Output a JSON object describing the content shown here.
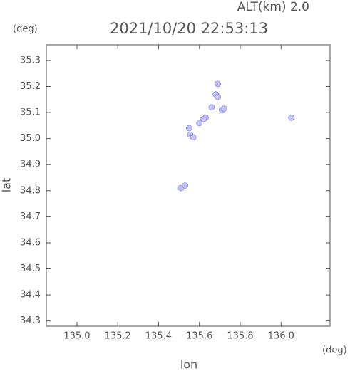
{
  "chart_data": {
    "type": "scatter",
    "title": "2021/10/20 22:53:13",
    "subtitle": "ALT(km) 2.0",
    "x_label": "lon",
    "y_label": "lat",
    "x_unit": "(deg)",
    "y_unit": "(deg)",
    "xlim": [
      134.85,
      136.24
    ],
    "ylim": [
      34.28,
      35.36
    ],
    "xticks": [
      {
        "value": 135,
        "label": "135.0"
      },
      135.2,
      135.4,
      135.6,
      135.8,
      {
        "value": 136,
        "label": "136.0"
      }
    ],
    "yticks": [
      34.3,
      34.4,
      34.5,
      34.6,
      34.7,
      34.8,
      34.9,
      {
        "value": 35,
        "label": "35.0"
      },
      35.1,
      35.2,
      35.3
    ],
    "color": "#c4c4f6",
    "x": [
      135.69,
      135.68,
      135.69,
      135.71,
      135.72,
      135.63,
      135.62,
      135.6,
      135.55,
      135.555,
      135.57,
      135.66,
      136.05,
      135.51,
      135.53
    ],
    "values": [
      35.21,
      35.17,
      35.16,
      35.11,
      35.115,
      35.08,
      35.075,
      35.06,
      35.04,
      35.015,
      35.005,
      35.12,
      35.08,
      34.81,
      34.82
    ]
  }
}
